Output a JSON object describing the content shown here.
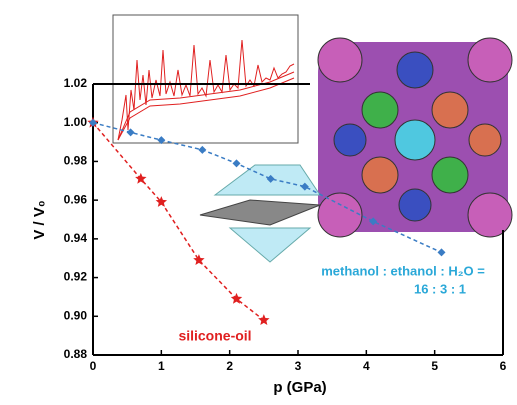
{
  "chart_data": {
    "type": "line",
    "x_label": "p (GPa)",
    "y_label": "V / V₀",
    "xlim": [
      0,
      6
    ],
    "xticks": [
      0,
      1,
      2,
      3,
      4,
      5,
      6
    ],
    "ylim": [
      0.88,
      1.02
    ],
    "yticks": [
      0.88,
      {
        "value": 0.9,
        "label": "0.90"
      },
      0.92,
      0.94,
      0.96,
      0.98,
      {
        "value": 1.0,
        "label": "1.00"
      },
      1.02
    ],
    "series": [
      {
        "name": "silicone-oil",
        "color": "#e02020",
        "marker": "star",
        "x": [
          0,
          0.7,
          1.0,
          1.55,
          2.1,
          2.5
        ],
        "values": [
          1.0,
          0.971,
          0.959,
          0.929,
          0.909,
          0.898
        ]
      },
      {
        "name": "methanol : ethanol : H₂O =",
        "name2": "16 : 3 : 1",
        "color": "#3a7cc4",
        "marker": "diamond",
        "x": [
          0,
          0.55,
          1.0,
          1.6,
          2.1,
          2.6,
          3.1,
          4.1,
          5.1
        ],
        "values": [
          1.0,
          0.995,
          0.991,
          0.986,
          0.979,
          0.971,
          0.967,
          0.949,
          0.933
        ]
      }
    ]
  }
}
